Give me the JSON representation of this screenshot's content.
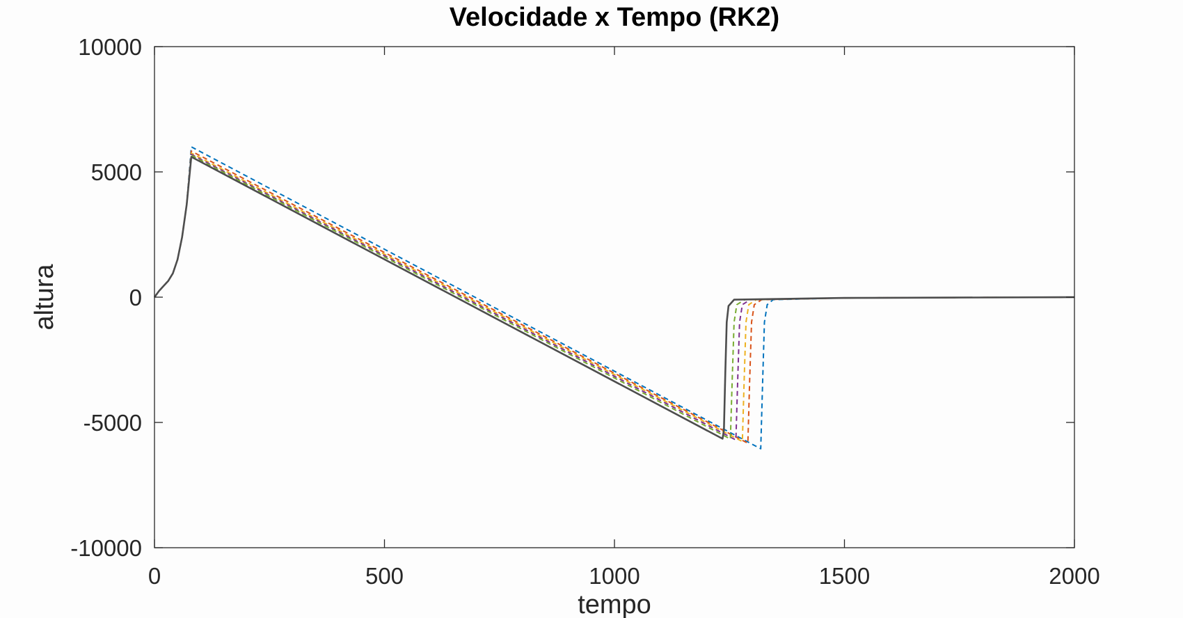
{
  "chart_data": {
    "type": "line",
    "title": "Velocidade x Tempo (RK2)",
    "xlabel": "tempo",
    "ylabel": "altura",
    "xlim": [
      0,
      2000
    ],
    "ylim": [
      -10000,
      10000
    ],
    "xticks": [
      0,
      500,
      1000,
      1500,
      2000
    ],
    "yticks": [
      -10000,
      -5000,
      0,
      5000,
      10000
    ],
    "xtick_labels": [
      "0",
      "500",
      "1000",
      "1500",
      "2000"
    ],
    "ytick_labels": [
      "-10000",
      "-5000",
      "0",
      "5000",
      "10000"
    ],
    "grid": false,
    "legend": "none",
    "series": [
      {
        "color": "#0072bd",
        "style": "dashed",
        "points": [
          [
            0,
            0
          ],
          [
            10,
            250
          ],
          [
            20,
            450
          ],
          [
            30,
            650
          ],
          [
            40,
            950
          ],
          [
            50,
            1500
          ],
          [
            60,
            2400
          ],
          [
            70,
            3700
          ],
          [
            80,
            6000
          ],
          [
            1318,
            -6050
          ],
          [
            1322,
            -3500
          ],
          [
            1326,
            -1000
          ],
          [
            1332,
            -300
          ],
          [
            1345,
            -100
          ],
          [
            1500,
            -30
          ],
          [
            2000,
            0
          ]
        ]
      },
      {
        "color": "#d95319",
        "style": "dashed",
        "points": [
          [
            0,
            0
          ],
          [
            10,
            250
          ],
          [
            20,
            450
          ],
          [
            30,
            650
          ],
          [
            40,
            950
          ],
          [
            50,
            1500
          ],
          [
            60,
            2400
          ],
          [
            70,
            3700
          ],
          [
            80,
            5830
          ],
          [
            1290,
            -5830
          ],
          [
            1294,
            -3300
          ],
          [
            1298,
            -1000
          ],
          [
            1304,
            -300
          ],
          [
            1320,
            -100
          ],
          [
            1500,
            -30
          ],
          [
            2000,
            0
          ]
        ]
      },
      {
        "color": "#edb120",
        "style": "dashed",
        "points": [
          [
            0,
            0
          ],
          [
            10,
            250
          ],
          [
            20,
            450
          ],
          [
            30,
            650
          ],
          [
            40,
            950
          ],
          [
            50,
            1500
          ],
          [
            60,
            2400
          ],
          [
            70,
            3700
          ],
          [
            80,
            5750
          ],
          [
            1278,
            -5760
          ],
          [
            1282,
            -3300
          ],
          [
            1286,
            -1000
          ],
          [
            1292,
            -300
          ],
          [
            1308,
            -100
          ],
          [
            1500,
            -30
          ],
          [
            2000,
            0
          ]
        ]
      },
      {
        "color": "#7e2f8e",
        "style": "dashed",
        "points": [
          [
            0,
            0
          ],
          [
            10,
            250
          ],
          [
            20,
            450
          ],
          [
            30,
            650
          ],
          [
            40,
            950
          ],
          [
            50,
            1500
          ],
          [
            60,
            2400
          ],
          [
            70,
            3700
          ],
          [
            80,
            5700
          ],
          [
            1264,
            -5700
          ],
          [
            1268,
            -3300
          ],
          [
            1272,
            -1000
          ],
          [
            1278,
            -300
          ],
          [
            1295,
            -100
          ],
          [
            1500,
            -30
          ],
          [
            2000,
            0
          ]
        ]
      },
      {
        "color": "#77ac30",
        "style": "dashed",
        "points": [
          [
            0,
            0
          ],
          [
            10,
            250
          ],
          [
            20,
            450
          ],
          [
            30,
            650
          ],
          [
            40,
            950
          ],
          [
            50,
            1500
          ],
          [
            60,
            2400
          ],
          [
            70,
            3700
          ],
          [
            80,
            5660
          ],
          [
            1252,
            -5660
          ],
          [
            1256,
            -3300
          ],
          [
            1260,
            -1000
          ],
          [
            1266,
            -300
          ],
          [
            1283,
            -100
          ],
          [
            1500,
            -30
          ],
          [
            2000,
            0
          ]
        ]
      },
      {
        "color": "#4d4d4d",
        "style": "solid",
        "points": [
          [
            0,
            0
          ],
          [
            10,
            250
          ],
          [
            20,
            450
          ],
          [
            30,
            650
          ],
          [
            40,
            950
          ],
          [
            50,
            1500
          ],
          [
            60,
            2400
          ],
          [
            70,
            3700
          ],
          [
            80,
            5600
          ],
          [
            1235,
            -5650
          ],
          [
            1238,
            -5300
          ],
          [
            1241,
            -3000
          ],
          [
            1244,
            -1000
          ],
          [
            1248,
            -350
          ],
          [
            1260,
            -100
          ],
          [
            1500,
            -30
          ],
          [
            2000,
            0
          ]
        ]
      }
    ]
  }
}
